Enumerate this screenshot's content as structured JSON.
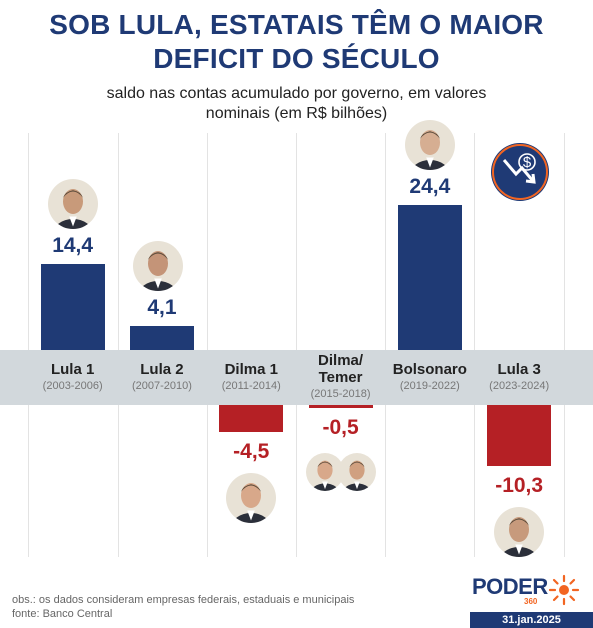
{
  "header": {
    "title_line1": "SOB LULA, ESTATAIS TÊM O MAIOR",
    "title_line2": "DEFICIT DO SÉCULO",
    "subtitle_line1": "saldo nas contas acumulado por governo, em valores",
    "subtitle_line2": "nominais (em R$ bilhões)"
  },
  "chart_data": {
    "type": "bar",
    "title": "SOB LULA, ESTATAIS TÊM O MAIOR DEFICIT DO SÉCULO",
    "subtitle": "saldo nas contas acumulado por governo, em valores nominais (em R$ bilhões)",
    "categories": [
      "Lula 1",
      "Lula 2",
      "Dilma 1",
      "Dilma/ Temer",
      "Bolsonaro",
      "Lula 3"
    ],
    "periods": [
      "(2003-2006)",
      "(2007-2010)",
      "(2011-2014)",
      "(2015-2018)",
      "(2019-2022)",
      "(2023-2024)"
    ],
    "values": [
      14.4,
      4.1,
      -4.5,
      -0.5,
      24.4,
      -10.3
    ],
    "value_labels": [
      "14,4",
      "4,1",
      "-4,5",
      "-0,5",
      "24,4",
      "-10,3"
    ],
    "colors": {
      "positive": "#1f3a75",
      "negative": "#b52025"
    }
  },
  "footer": {
    "note": "obs.: os dados consideram empresas federais, estaduais e municipais",
    "source": "fonte: Banco Central",
    "brand": "PODER",
    "brand_sub": "360",
    "date": "31.jan.2025"
  },
  "icons": {
    "corner": "money-decline-icon",
    "brand": "sunburst-icon"
  }
}
